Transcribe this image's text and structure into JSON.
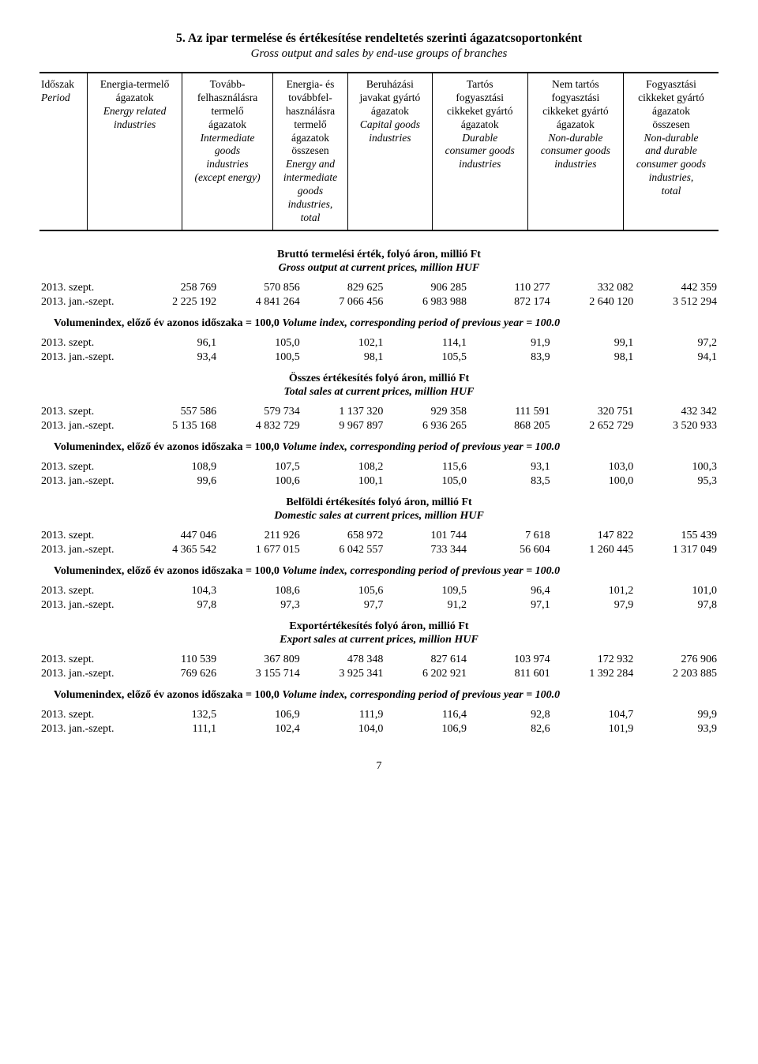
{
  "page": {
    "title": "5. Az ipar termelése és értékesítése rendeltetés szerinti ágazatcsoportonként",
    "subtitle": "Gross output and sales by end-use groups of branches",
    "page_number": "7"
  },
  "header_columns": [
    {
      "hu": "Időszak\nPeriod",
      "en_italic_lines": [
        "Időszak"
      ],
      "lines": [
        "Időszak"
      ],
      "italic": [
        "Period"
      ],
      "align": "left"
    },
    {
      "lines": [
        "Energia-termelő",
        "ágazatok"
      ],
      "italic": [
        "Energy related",
        "industries"
      ],
      "align": "center"
    },
    {
      "lines": [
        "Tovább-",
        "felhasználásra",
        "termelő",
        "ágazatok"
      ],
      "italic": [
        "Intermediate",
        "goods",
        "industries",
        "(except energy)"
      ],
      "align": "center"
    },
    {
      "lines": [
        "Energia- és",
        "továbbfel-",
        "használásra",
        "termelő",
        "ágazatok",
        "összesen"
      ],
      "italic": [
        "Energy and",
        "intermediate",
        "goods",
        "industries,",
        "total"
      ],
      "align": "center"
    },
    {
      "lines": [
        "Beruházási",
        "javakat gyártó",
        "ágazatok"
      ],
      "italic": [
        "Capital goods",
        "industries"
      ],
      "align": "center"
    },
    {
      "lines": [
        "Tartós",
        "fogyasztási",
        "cikkeket gyártó",
        "ágazatok"
      ],
      "italic": [
        "Durable",
        "consumer goods",
        "industries"
      ],
      "align": "center"
    },
    {
      "lines": [
        "Nem tartós",
        "fogyasztási",
        "cikkeket gyártó",
        "ágazatok"
      ],
      "italic": [
        "Non-durable",
        "consumer goods",
        "industries"
      ],
      "align": "center"
    },
    {
      "lines": [
        "Fogyasztási",
        "cikkeket gyártó",
        "ágazatok",
        "összesen"
      ],
      "italic": [
        "Non-durable",
        "and durable",
        "consumer goods",
        "industries,",
        "total"
      ],
      "align": "center"
    }
  ],
  "volindex_text": {
    "hu": "Volumenindex, előző év azonos időszaka = 100,0 ",
    "en": "Volume index, corresponding period of previous year = 100.0"
  },
  "sections": [
    {
      "title_hu": "Bruttó termelési érték, folyó áron, millió Ft",
      "title_en": "Gross output at current prices, million HUF",
      "rows": [
        {
          "label": "2013. szept.",
          "vals": [
            "258 769",
            "570 856",
            "829 625",
            "906 285",
            "110 277",
            "332 082",
            "442 359"
          ]
        },
        {
          "label": "2013. jan.-szept.",
          "vals": [
            "2 225 192",
            "4 841 264",
            "7 066 456",
            "6 983 988",
            "872 174",
            "2 640 120",
            "3 512 294"
          ]
        }
      ],
      "vol_rows": [
        {
          "label": "2013. szept.",
          "vals": [
            "96,1",
            "105,0",
            "102,1",
            "114,1",
            "91,9",
            "99,1",
            "97,2"
          ]
        },
        {
          "label": "2013. jan.-szept.",
          "vals": [
            "93,4",
            "100,5",
            "98,1",
            "105,5",
            "83,9",
            "98,1",
            "94,1"
          ]
        }
      ]
    },
    {
      "title_hu": "Összes értékesítés folyó áron, millió Ft",
      "title_en": "Total sales at current prices, million HUF",
      "rows": [
        {
          "label": "2013. szept.",
          "vals": [
            "557 586",
            "579 734",
            "1 137 320",
            "929 358",
            "111 591",
            "320 751",
            "432 342"
          ]
        },
        {
          "label": "2013. jan.-szept.",
          "vals": [
            "5 135 168",
            "4 832 729",
            "9 967 897",
            "6 936 265",
            "868 205",
            "2 652 729",
            "3 520 933"
          ]
        }
      ],
      "vol_rows": [
        {
          "label": "2013. szept.",
          "vals": [
            "108,9",
            "107,5",
            "108,2",
            "115,6",
            "93,1",
            "103,0",
            "100,3"
          ]
        },
        {
          "label": "2013. jan.-szept.",
          "vals": [
            "99,6",
            "100,6",
            "100,1",
            "105,0",
            "83,5",
            "100,0",
            "95,3"
          ]
        }
      ]
    },
    {
      "title_hu": "Belföldi értékesítés folyó áron, millió Ft",
      "title_en": "Domestic sales at current prices, million HUF",
      "rows": [
        {
          "label": "2013. szept.",
          "vals": [
            "447 046",
            "211 926",
            "658 972",
            "101 744",
            "7 618",
            "147 822",
            "155 439"
          ]
        },
        {
          "label": "2013. jan.-szept.",
          "vals": [
            "4 365 542",
            "1 677 015",
            "6 042 557",
            "733 344",
            "56 604",
            "1 260 445",
            "1 317 049"
          ]
        }
      ],
      "vol_rows": [
        {
          "label": "2013. szept.",
          "vals": [
            "104,3",
            "108,6",
            "105,6",
            "109,5",
            "96,4",
            "101,2",
            "101,0"
          ]
        },
        {
          "label": "2013. jan.-szept.",
          "vals": [
            "97,8",
            "97,3",
            "97,7",
            "91,2",
            "97,1",
            "97,9",
            "97,8"
          ]
        }
      ]
    },
    {
      "title_hu": "Exportértékesítés folyó áron, millió Ft",
      "title_en": "Export sales at current prices, million HUF",
      "rows": [
        {
          "label": "2013. szept.",
          "vals": [
            "110 539",
            "367 809",
            "478 348",
            "827 614",
            "103 974",
            "172 932",
            "276 906"
          ]
        },
        {
          "label": "2013. jan.-szept.",
          "vals": [
            "769 626",
            "3 155 714",
            "3 925 341",
            "6 202 921",
            "811 601",
            "1 392 284",
            "2 203 885"
          ]
        }
      ],
      "vol_rows": [
        {
          "label": "2013. szept.",
          "vals": [
            "132,5",
            "106,9",
            "111,9",
            "116,4",
            "92,8",
            "104,7",
            "99,9"
          ]
        },
        {
          "label": "2013. jan.-szept.",
          "vals": [
            "111,1",
            "102,4",
            "104,0",
            "106,9",
            "82,6",
            "101,9",
            "93,9"
          ]
        }
      ]
    }
  ]
}
